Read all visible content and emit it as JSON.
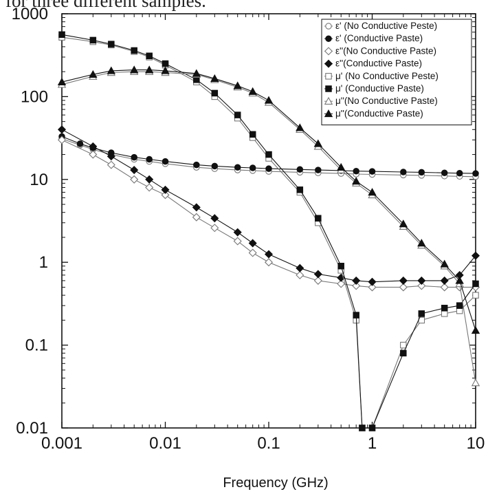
{
  "caption": "for three different samples.",
  "chart_data": {
    "type": "line",
    "title": "",
    "xlabel": "Frequency (GHz)",
    "ylabel": "",
    "xscale": "log",
    "yscale": "log",
    "xlim": [
      0.001,
      10
    ],
    "ylim": [
      0.01,
      1000
    ],
    "x_ticks": [
      "0.001",
      "0.01",
      "0.1",
      "1",
      "10"
    ],
    "y_ticks": [
      "0.01",
      "0.1",
      "1",
      "10",
      "100",
      "1000"
    ],
    "grid": false,
    "legend_position": "top-right",
    "series": [
      {
        "name": "ε' (No Conductive Peste)",
        "symbol": "○",
        "marker": "circle-open",
        "color": "#777777",
        "points": [
          [
            0.001,
            31
          ],
          [
            0.0015,
            26
          ],
          [
            0.002,
            23
          ],
          [
            0.003,
            20
          ],
          [
            0.005,
            17.5
          ],
          [
            0.007,
            16.5
          ],
          [
            0.01,
            15.5
          ],
          [
            0.02,
            14
          ],
          [
            0.03,
            13.5
          ],
          [
            0.05,
            13
          ],
          [
            0.07,
            12.8
          ],
          [
            0.1,
            12.5
          ],
          [
            0.2,
            12.2
          ],
          [
            0.3,
            12
          ],
          [
            0.5,
            11.8
          ],
          [
            0.7,
            11.6
          ],
          [
            1,
            11.5
          ],
          [
            2,
            11.3
          ],
          [
            3,
            11.2
          ],
          [
            5,
            11
          ],
          [
            7,
            10.9
          ],
          [
            10,
            10.8
          ]
        ]
      },
      {
        "name": "ε' (Conductive Paste)",
        "symbol": "●",
        "marker": "circle-filled",
        "color": "#111111",
        "points": [
          [
            0.001,
            33
          ],
          [
            0.0015,
            27
          ],
          [
            0.002,
            24
          ],
          [
            0.003,
            21
          ],
          [
            0.005,
            18.5
          ],
          [
            0.007,
            17.5
          ],
          [
            0.01,
            16.5
          ],
          [
            0.02,
            15
          ],
          [
            0.03,
            14.5
          ],
          [
            0.05,
            14
          ],
          [
            0.07,
            13.8
          ],
          [
            0.1,
            13.5
          ],
          [
            0.2,
            13.2
          ],
          [
            0.3,
            13
          ],
          [
            0.5,
            12.8
          ],
          [
            0.7,
            12.6
          ],
          [
            1,
            12.5
          ],
          [
            2,
            12.3
          ],
          [
            3,
            12.2
          ],
          [
            5,
            12
          ],
          [
            7,
            11.9
          ],
          [
            10,
            11.8
          ]
        ]
      },
      {
        "name": "ε''(No Conductive Paste)",
        "symbol": "◇",
        "marker": "diamond-open",
        "color": "#777777",
        "points": [
          [
            0.001,
            30
          ],
          [
            0.002,
            20
          ],
          [
            0.003,
            15
          ],
          [
            0.005,
            10
          ],
          [
            0.007,
            8
          ],
          [
            0.01,
            6.5
          ],
          [
            0.02,
            3.5
          ],
          [
            0.03,
            2.6
          ],
          [
            0.05,
            1.8
          ],
          [
            0.07,
            1.3
          ],
          [
            0.1,
            1
          ],
          [
            0.2,
            0.7
          ],
          [
            0.3,
            0.6
          ],
          [
            0.5,
            0.55
          ],
          [
            0.7,
            0.52
          ],
          [
            1,
            0.5
          ],
          [
            2,
            0.5
          ],
          [
            3,
            0.52
          ],
          [
            5,
            0.5
          ],
          [
            7,
            0.5
          ],
          [
            10,
            0.5
          ]
        ]
      },
      {
        "name": "ε''(Conductive Paste)",
        "symbol": "◆",
        "marker": "diamond-filled",
        "color": "#111111",
        "points": [
          [
            0.001,
            40
          ],
          [
            0.002,
            25
          ],
          [
            0.003,
            19
          ],
          [
            0.005,
            13
          ],
          [
            0.007,
            10
          ],
          [
            0.01,
            7.5
          ],
          [
            0.02,
            4.6
          ],
          [
            0.03,
            3.4
          ],
          [
            0.05,
            2.3
          ],
          [
            0.07,
            1.7
          ],
          [
            0.1,
            1.25
          ],
          [
            0.2,
            0.85
          ],
          [
            0.3,
            0.72
          ],
          [
            0.5,
            0.65
          ],
          [
            0.7,
            0.6
          ],
          [
            1,
            0.58
          ],
          [
            2,
            0.6
          ],
          [
            3,
            0.6
          ],
          [
            5,
            0.6
          ],
          [
            7,
            0.7
          ],
          [
            10,
            1.2
          ]
        ]
      },
      {
        "name": "μ' (No Conductive Peste)",
        "symbol": "□",
        "marker": "square-open",
        "color": "#777777",
        "points": [
          [
            0.001,
            520
          ],
          [
            0.002,
            460
          ],
          [
            0.003,
            420
          ],
          [
            0.005,
            350
          ],
          [
            0.007,
            300
          ],
          [
            0.01,
            240
          ],
          [
            0.02,
            150
          ],
          [
            0.03,
            100
          ],
          [
            0.05,
            55
          ],
          [
            0.07,
            32
          ],
          [
            0.1,
            18
          ],
          [
            0.2,
            7
          ],
          [
            0.3,
            3
          ],
          [
            0.5,
            0.8
          ],
          [
            0.7,
            0.2
          ],
          [
            0.8,
            0.01
          ],
          [
            1,
            0.01
          ],
          [
            2,
            0.1
          ],
          [
            3,
            0.2
          ],
          [
            5,
            0.24
          ],
          [
            7,
            0.26
          ],
          [
            10,
            0.4
          ]
        ]
      },
      {
        "name": "μ' (Conductive Paste)",
        "symbol": "■",
        "marker": "square-filled",
        "color": "#111111",
        "points": [
          [
            0.001,
            560
          ],
          [
            0.002,
            480
          ],
          [
            0.003,
            430
          ],
          [
            0.005,
            360
          ],
          [
            0.007,
            310
          ],
          [
            0.01,
            250
          ],
          [
            0.02,
            160
          ],
          [
            0.03,
            110
          ],
          [
            0.05,
            60
          ],
          [
            0.07,
            35
          ],
          [
            0.1,
            20
          ],
          [
            0.2,
            7.5
          ],
          [
            0.3,
            3.4
          ],
          [
            0.5,
            0.9
          ],
          [
            0.7,
            0.23
          ],
          [
            0.8,
            0.01
          ],
          [
            1,
            0.01
          ],
          [
            2,
            0.08
          ],
          [
            3,
            0.24
          ],
          [
            5,
            0.28
          ],
          [
            7,
            0.3
          ],
          [
            10,
            0.55
          ]
        ]
      },
      {
        "name": "μ''(No Conductive Paste)",
        "symbol": "△",
        "marker": "triangle-open",
        "color": "#777777",
        "points": [
          [
            0.001,
            140
          ],
          [
            0.002,
            175
          ],
          [
            0.003,
            195
          ],
          [
            0.005,
            200
          ],
          [
            0.007,
            200
          ],
          [
            0.01,
            195
          ],
          [
            0.02,
            185
          ],
          [
            0.03,
            160
          ],
          [
            0.05,
            130
          ],
          [
            0.07,
            110
          ],
          [
            0.1,
            85
          ],
          [
            0.2,
            40
          ],
          [
            0.3,
            25
          ],
          [
            0.5,
            13
          ],
          [
            0.7,
            9
          ],
          [
            1,
            6.5
          ],
          [
            2,
            2.7
          ],
          [
            3,
            1.6
          ],
          [
            5,
            0.9
          ],
          [
            7,
            0.55
          ],
          [
            10,
            0.035
          ]
        ]
      },
      {
        "name": "μ''(Conductive Paste)",
        "symbol": "▲",
        "marker": "triangle-filled",
        "color": "#111111",
        "points": [
          [
            0.001,
            150
          ],
          [
            0.002,
            185
          ],
          [
            0.003,
            205
          ],
          [
            0.005,
            210
          ],
          [
            0.007,
            210
          ],
          [
            0.01,
            205
          ],
          [
            0.02,
            190
          ],
          [
            0.03,
            165
          ],
          [
            0.05,
            135
          ],
          [
            0.07,
            115
          ],
          [
            0.1,
            90
          ],
          [
            0.2,
            42
          ],
          [
            0.3,
            27
          ],
          [
            0.5,
            14
          ],
          [
            0.7,
            9.5
          ],
          [
            1,
            7
          ],
          [
            2,
            2.9
          ],
          [
            3,
            1.7
          ],
          [
            5,
            0.95
          ],
          [
            7,
            0.6
          ],
          [
            10,
            0.15
          ]
        ]
      }
    ]
  }
}
